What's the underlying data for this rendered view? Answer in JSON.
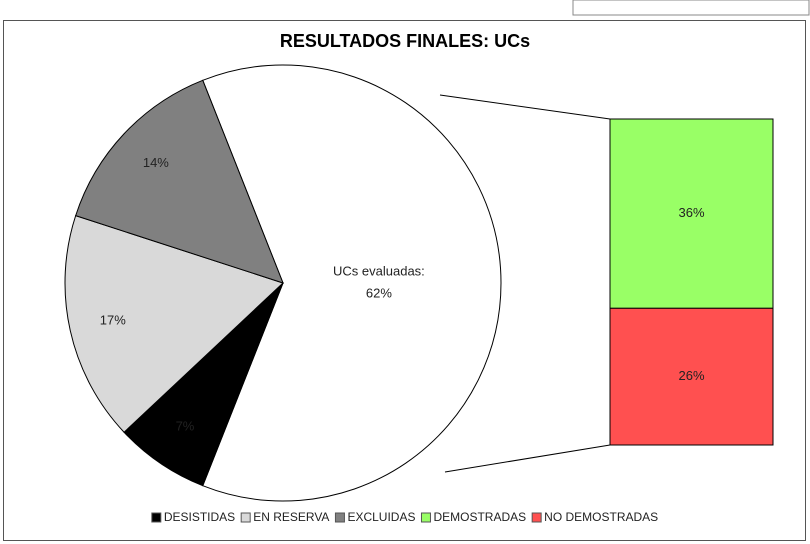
{
  "chart_data": {
    "type": "pie",
    "title": "RESULTADOS FINALES: UCs",
    "series": [
      {
        "name": "DESISTIDAS",
        "color": "#000000",
        "value": 7,
        "value_label": "7%"
      },
      {
        "name": "EN RESERVA",
        "color": "#d9d9d9",
        "value": 17,
        "value_label": "17%"
      },
      {
        "name": "EXCLUIDAS",
        "color": "#808080",
        "value": 14,
        "value_label": "14%"
      }
    ],
    "other": {
      "label": "UCs evaluadas:",
      "value": 62,
      "value_label": "62%",
      "color": "#ffffff",
      "breakdown": [
        {
          "name": "DEMOSTRADAS",
          "color": "#99ff66",
          "value": 36,
          "value_label": "36%"
        },
        {
          "name": "NO DEMOSTRADAS",
          "color": "#ff5050",
          "value": 26,
          "value_label": "26%"
        }
      ]
    }
  }
}
